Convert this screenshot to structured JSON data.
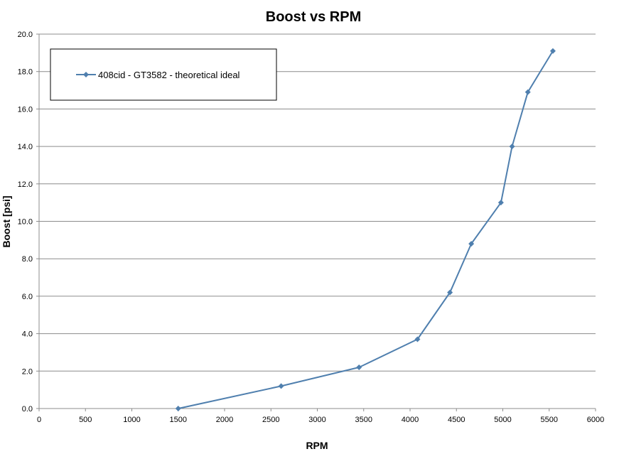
{
  "chart_data": {
    "type": "line",
    "title": "Boost vs RPM",
    "xlabel": "RPM",
    "ylabel": "Boost [psi]",
    "xlim": [
      0,
      6000
    ],
    "ylim": [
      0,
      20
    ],
    "x_ticks": [
      0,
      500,
      1000,
      1500,
      2000,
      2500,
      3000,
      3500,
      4000,
      4500,
      5000,
      5500,
      6000
    ],
    "x_tick_labels": [
      "0",
      "500",
      "1000",
      "1500",
      "2000",
      "2500",
      "3000",
      "3500",
      "4000",
      "4500",
      "5000",
      "5500",
      "6000"
    ],
    "y_ticks": [
      0,
      2,
      4,
      6,
      8,
      10,
      12,
      14,
      16,
      18,
      20
    ],
    "y_tick_labels": [
      "0.0",
      "2.0",
      "4.0",
      "6.0",
      "8.0",
      "10.0",
      "12.0",
      "14.0",
      "16.0",
      "18.0",
      "20.0"
    ],
    "grid": "horizontal",
    "legend_position": "top-left",
    "series": [
      {
        "name": "408cid - GT3582 - theoretical ideal",
        "color": "#4f7fae",
        "marker": "diamond",
        "x": [
          1500,
          2610,
          3450,
          4080,
          4430,
          4660,
          4980,
          5100,
          5270,
          5540
        ],
        "y": [
          0.0,
          1.2,
          2.2,
          3.7,
          6.2,
          8.8,
          11.0,
          14.0,
          16.9,
          19.1
        ]
      }
    ]
  }
}
